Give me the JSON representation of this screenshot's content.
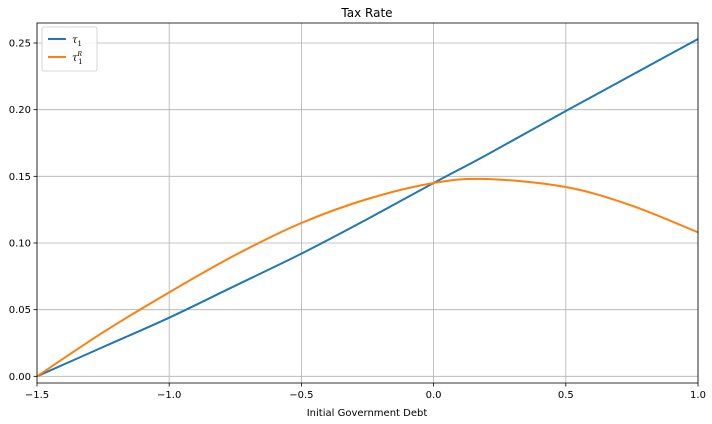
{
  "chart_data": {
    "type": "line",
    "title": "Tax Rate",
    "xlabel": "Initial Government Debt",
    "ylabel": "",
    "xlim": [
      -1.5,
      1.0
    ],
    "ylim": [
      -0.005,
      0.265
    ],
    "xticks": [
      -1.5,
      -1.0,
      -0.5,
      0.0,
      0.5,
      1.0
    ],
    "xtick_labels": [
      "−1.5",
      "−1.0",
      "−0.5",
      "0.0",
      "0.5",
      "1.0"
    ],
    "yticks": [
      0.0,
      0.05,
      0.1,
      0.15,
      0.2,
      0.25
    ],
    "ytick_labels": [
      "0.00",
      "0.05",
      "0.10",
      "0.15",
      "0.20",
      "0.25"
    ],
    "grid": true,
    "legend_position": "top-left",
    "x": [
      -1.5,
      -1.25,
      -1.0,
      -0.75,
      -0.5,
      -0.25,
      0.0,
      0.2,
      0.5,
      0.75,
      1.0
    ],
    "series": [
      {
        "name": "τ₁",
        "legend": {
          "base": "τ",
          "sub": "1",
          "sup": ""
        },
        "color": "#1f77b4",
        "values": [
          0.0,
          0.022,
          0.044,
          0.068,
          0.092,
          0.118,
          0.145,
          0.166,
          0.199,
          0.226,
          0.253
        ]
      },
      {
        "name": "τ₁ᴿ",
        "legend": {
          "base": "τ",
          "sub": "1",
          "sup": "R"
        },
        "color": "#ff7f0e",
        "values": [
          0.0,
          0.033,
          0.063,
          0.091,
          0.115,
          0.133,
          0.145,
          0.148,
          0.142,
          0.128,
          0.108
        ]
      }
    ]
  }
}
